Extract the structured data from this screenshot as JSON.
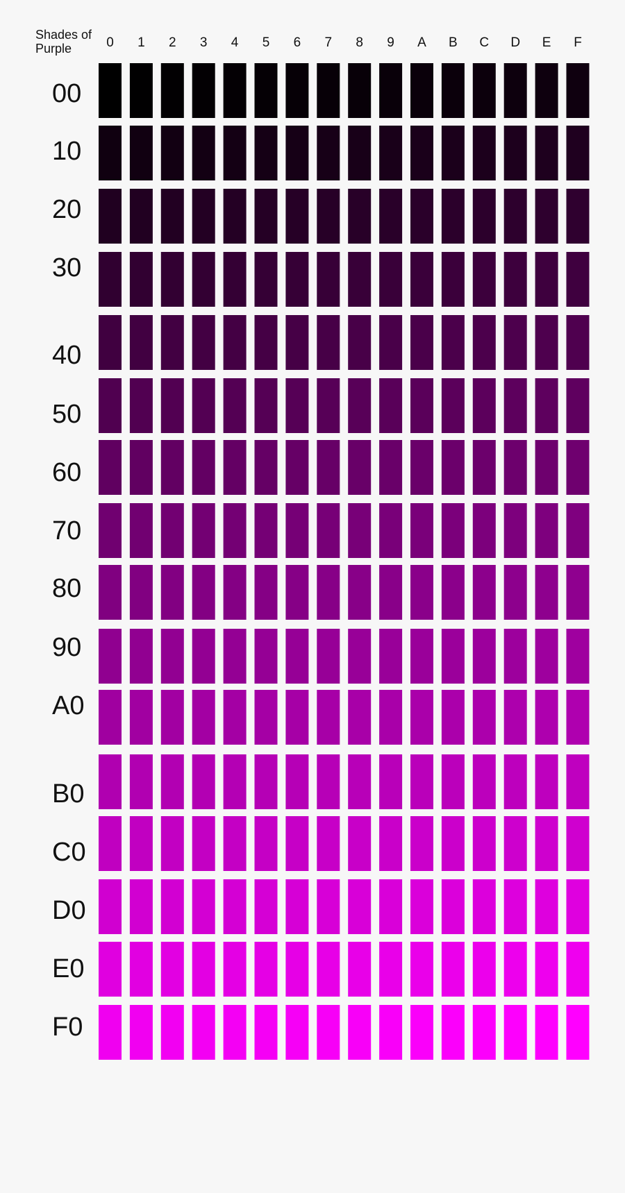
{
  "header": {
    "title_lines": [
      "Shades of",
      "Purple"
    ]
  },
  "columns": [
    "0",
    "1",
    "2",
    "3",
    "4",
    "5",
    "6",
    "7",
    "8",
    "9",
    "A",
    "B",
    "C",
    "D",
    "E",
    "F"
  ],
  "rows": [
    "00",
    "10",
    "20",
    "30",
    "40",
    "50",
    "60",
    "70",
    "80",
    "90",
    "A0",
    "B0",
    "C0",
    "D0",
    "E0",
    "F0"
  ]
}
